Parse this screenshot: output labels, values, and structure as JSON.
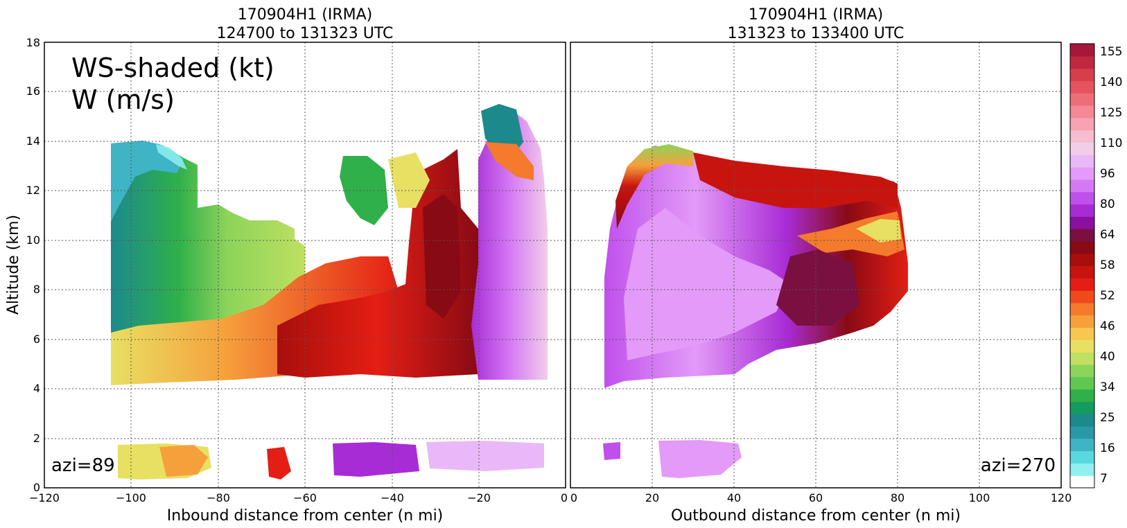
{
  "colors": {
    "scale": [
      "#ffffff",
      "#8ff0f0",
      "#5ad8e0",
      "#3fb4c4",
      "#2a98a8",
      "#1c8a8c",
      "#159a60",
      "#2fb04a",
      "#5fc850",
      "#8cd45a",
      "#bfe060",
      "#e8e062",
      "#f6c850",
      "#f6a03c",
      "#f47a2c",
      "#f04a1c",
      "#e41e14",
      "#c8140e",
      "#a80e0c",
      "#880a14",
      "#7a1040",
      "#8a10a0",
      "#a82cd6",
      "#c050ec",
      "#d478f4",
      "#e39af8",
      "#eab8f8",
      "#f2cde8",
      "#f6bcd0",
      "#f8a2b4",
      "#f48894",
      "#ee6e78",
      "#e4545e",
      "#d63e4c",
      "#c0283e",
      "#a6173a"
    ]
  },
  "panel_left": {
    "title_line1": "170904H1 (IRMA)",
    "title_line2": "124700 to 131323 UTC",
    "xlabel": "Inbound distance from center (n mi)",
    "azi": "azi=89",
    "x_ticks": [
      "−120",
      "−100",
      "−80",
      "−60",
      "−40",
      "−20",
      "0"
    ]
  },
  "panel_right": {
    "title_line1": "170904H1 (IRMA)",
    "title_line2": "131323 to 133400 UTC",
    "xlabel": "Outbound distance from center (n mi)",
    "azi": "azi=270",
    "x_ticks": [
      "0",
      "20",
      "40",
      "60",
      "80",
      "100",
      "120"
    ]
  },
  "annotation": {
    "line1": "WS-shaded (kt)",
    "line2": "W (m/s)"
  },
  "ylabel": "Altitude (km)",
  "y_ticks": [
    "0",
    "2",
    "4",
    "6",
    "8",
    "10",
    "12",
    "14",
    "16",
    "18"
  ],
  "colorbar": {
    "labels": [
      "7",
      "16",
      "25",
      "34",
      "40",
      "46",
      "52",
      "58",
      "64",
      "80",
      "96",
      "110",
      "125",
      "140",
      "155"
    ]
  },
  "chart_data": [
    {
      "type": "heatmap",
      "title": "170904H1 (IRMA) 124700 to 131323 UTC",
      "xlabel": "Inbound distance from center (n mi)",
      "ylabel": "Altitude (km)",
      "xlim": [
        -120,
        0
      ],
      "ylim": [
        0,
        18
      ],
      "grid": true,
      "annotation": "azi=89",
      "legend_text": [
        "WS-shaded (kt)",
        "W (m/s)"
      ],
      "regions": [
        {
          "x": [
            -104,
            -80
          ],
          "y": [
            4.3,
            13.5
          ],
          "ws_kt": 32
        },
        {
          "x": [
            -80,
            -58
          ],
          "y": [
            4.2,
            11
          ],
          "ws_kt": 42
        },
        {
          "x": [
            -58,
            -38
          ],
          "y": [
            4.2,
            8
          ],
          "ws_kt": 55
        },
        {
          "x": [
            -52,
            -40
          ],
          "y": [
            11,
            13.5
          ],
          "ws_kt": 36
        },
        {
          "x": [
            -38,
            -24
          ],
          "y": [
            4.3,
            13.5
          ],
          "ws_kt": 60
        },
        {
          "x": [
            -22,
            -6
          ],
          "y": [
            4.3,
            15.5
          ],
          "ws_kt": 88
        },
        {
          "x": [
            -104,
            -86
          ],
          "y": [
            0.3,
            1.9
          ],
          "ws_kt": 44
        },
        {
          "x": [
            -68,
            -62
          ],
          "y": [
            0.5,
            1.7
          ],
          "ws_kt": 54
        },
        {
          "x": [
            -56,
            -36
          ],
          "y": [
            0.5,
            1.9
          ],
          "ws_kt": 70
        },
        {
          "x": [
            -34,
            -6
          ],
          "y": [
            0.5,
            2.0
          ],
          "ws_kt": 90
        }
      ]
    },
    {
      "type": "heatmap",
      "title": "170904H1 (IRMA) 131323 to 133400 UTC",
      "xlabel": "Outbound distance from center (n mi)",
      "ylabel": "Altitude (km)",
      "xlim": [
        0,
        120
      ],
      "ylim": [
        0,
        18
      ],
      "grid": true,
      "annotation": "azi=270",
      "regions": [
        {
          "x": [
            8,
            80
          ],
          "y": [
            4.2,
            14
          ],
          "ws_kt": 80
        },
        {
          "x": [
            20,
            60
          ],
          "y": [
            5.5,
            10
          ],
          "ws_kt": 100
        },
        {
          "x": [
            50,
            80
          ],
          "y": [
            7,
            12.5
          ],
          "ws_kt": 58
        },
        {
          "x": [
            8,
            12
          ],
          "y": [
            0.8,
            1.6
          ],
          "ws_kt": 78
        },
        {
          "x": [
            20,
            42
          ],
          "y": [
            0.5,
            2.0
          ],
          "ws_kt": 92
        }
      ]
    }
  ]
}
